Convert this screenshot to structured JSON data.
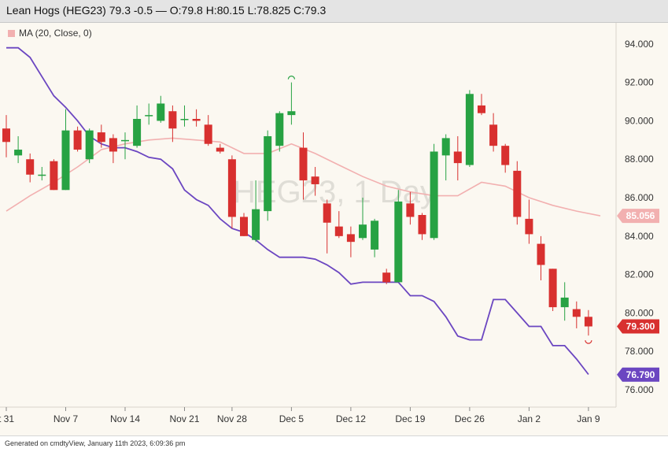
{
  "header": {
    "title": "Lean Hogs (HEG23) 79.3 -0.5 — O:79.8 H:80.15 L:78.825 C:79.3"
  },
  "legend": {
    "label": "MA (20, Close, 0)"
  },
  "watermark": "HEG23, 1 Day",
  "footer": {
    "note": "Generated on cmdtyView, January 11th 2023, 6:09:36 pm"
  },
  "colors": {
    "up": "#27a243",
    "down": "#d8302f",
    "ma": "#f2b0b0",
    "purple_line": "#6b46c1",
    "background": "#fbf8f1"
  },
  "chart_data": {
    "type": "candlestick",
    "symbol": "HEG23",
    "ylim": [
      75.1,
      95.1
    ],
    "y_ticks": [
      "94.000",
      "92.000",
      "90.000",
      "88.000",
      "86.000",
      "84.000",
      "82.000",
      "80.000",
      "78.000",
      "76.000"
    ],
    "x_tick_labels": [
      {
        "label": "t 31",
        "index": 0
      },
      {
        "label": "Nov 7",
        "index": 5
      },
      {
        "label": "Nov 14",
        "index": 10
      },
      {
        "label": "Nov 21",
        "index": 15
      },
      {
        "label": "Nov 28",
        "index": 19
      },
      {
        "label": "Dec 5",
        "index": 24
      },
      {
        "label": "Dec 12",
        "index": 29
      },
      {
        "label": "Dec 19",
        "index": 34
      },
      {
        "label": "Dec 26",
        "index": 39
      },
      {
        "label": "Jan 2",
        "index": 44
      },
      {
        "label": "Jan 9",
        "index": 49
      }
    ],
    "candles": [
      {
        "o": 89.6,
        "h": 90.3,
        "l": 88.1,
        "c": 88.9
      },
      {
        "o": 88.2,
        "h": 89.2,
        "l": 87.8,
        "c": 88.5
      },
      {
        "o": 88.0,
        "h": 88.3,
        "l": 86.8,
        "c": 87.2
      },
      {
        "o": 87.2,
        "h": 87.6,
        "l": 86.9,
        "c": 87.2
      },
      {
        "o": 87.9,
        "h": 88.0,
        "l": 86.4,
        "c": 86.4
      },
      {
        "o": 86.4,
        "h": 90.6,
        "l": 86.4,
        "c": 89.5
      },
      {
        "o": 89.5,
        "h": 89.7,
        "l": 88.4,
        "c": 88.5
      },
      {
        "o": 88.0,
        "h": 89.6,
        "l": 87.8,
        "c": 89.5
      },
      {
        "o": 89.4,
        "h": 89.8,
        "l": 88.6,
        "c": 88.9
      },
      {
        "o": 89.1,
        "h": 89.3,
        "l": 87.8,
        "c": 88.4
      },
      {
        "o": 89.0,
        "h": 89.4,
        "l": 88.0,
        "c": 89.0
      },
      {
        "o": 88.7,
        "h": 90.8,
        "l": 88.6,
        "c": 90.1
      },
      {
        "o": 90.3,
        "h": 90.9,
        "l": 89.8,
        "c": 90.3
      },
      {
        "o": 90.0,
        "h": 91.3,
        "l": 89.9,
        "c": 90.9
      },
      {
        "o": 90.5,
        "h": 90.8,
        "l": 88.9,
        "c": 89.6
      },
      {
        "o": 90.1,
        "h": 90.8,
        "l": 89.7,
        "c": 90.1
      },
      {
        "o": 90.1,
        "h": 90.6,
        "l": 89.7,
        "c": 90.0
      },
      {
        "o": 89.8,
        "h": 90.3,
        "l": 88.7,
        "c": 88.8
      },
      {
        "o": 88.6,
        "h": 88.8,
        "l": 88.3,
        "c": 88.4
      },
      {
        "o": 88.0,
        "h": 88.2,
        "l": 84.4,
        "c": 85.0
      },
      {
        "o": 85.0,
        "h": 85.2,
        "l": 84.0,
        "c": 84.0
      },
      {
        "o": 83.8,
        "h": 86.9,
        "l": 83.7,
        "c": 85.4
      },
      {
        "o": 85.3,
        "h": 89.5,
        "l": 84.8,
        "c": 89.2
      },
      {
        "o": 88.7,
        "h": 90.5,
        "l": 88.4,
        "c": 90.4
      },
      {
        "o": 90.3,
        "h": 92.0,
        "l": 89.8,
        "c": 90.5
      },
      {
        "o": 88.6,
        "h": 89.4,
        "l": 85.9,
        "c": 86.9
      },
      {
        "o": 87.1,
        "h": 87.6,
        "l": 86.1,
        "c": 86.7
      },
      {
        "o": 85.7,
        "h": 85.9,
        "l": 83.1,
        "c": 84.7
      },
      {
        "o": 84.5,
        "h": 85.3,
        "l": 83.9,
        "c": 84.0
      },
      {
        "o": 84.1,
        "h": 84.5,
        "l": 82.9,
        "c": 83.7
      },
      {
        "o": 83.9,
        "h": 86.0,
        "l": 83.8,
        "c": 84.6
      },
      {
        "o": 83.3,
        "h": 84.9,
        "l": 82.9,
        "c": 84.8
      },
      {
        "o": 82.1,
        "h": 82.3,
        "l": 81.5,
        "c": 81.6
      },
      {
        "o": 81.6,
        "h": 86.4,
        "l": 81.6,
        "c": 85.8
      },
      {
        "o": 85.7,
        "h": 86.3,
        "l": 84.6,
        "c": 85.0
      },
      {
        "o": 85.1,
        "h": 85.2,
        "l": 83.8,
        "c": 84.1
      },
      {
        "o": 83.9,
        "h": 88.8,
        "l": 83.8,
        "c": 88.4
      },
      {
        "o": 88.2,
        "h": 89.3,
        "l": 86.9,
        "c": 89.1
      },
      {
        "o": 88.4,
        "h": 89.2,
        "l": 86.9,
        "c": 87.8
      },
      {
        "o": 87.7,
        "h": 91.6,
        "l": 87.6,
        "c": 91.4
      },
      {
        "o": 90.8,
        "h": 91.4,
        "l": 90.3,
        "c": 90.4
      },
      {
        "o": 89.8,
        "h": 90.4,
        "l": 88.4,
        "c": 88.7
      },
      {
        "o": 88.7,
        "h": 88.8,
        "l": 87.3,
        "c": 87.7
      },
      {
        "o": 87.4,
        "h": 87.9,
        "l": 84.6,
        "c": 85.0
      },
      {
        "o": 84.9,
        "h": 85.9,
        "l": 83.6,
        "c": 84.1
      },
      {
        "o": 83.6,
        "h": 84.0,
        "l": 81.7,
        "c": 82.5
      },
      {
        "o": 82.3,
        "h": 82.3,
        "l": 80.1,
        "c": 80.3
      },
      {
        "o": 80.3,
        "h": 81.6,
        "l": 79.6,
        "c": 80.8
      },
      {
        "o": 80.2,
        "h": 80.6,
        "l": 79.2,
        "c": 79.8
      },
      {
        "o": 79.8,
        "h": 80.15,
        "l": 78.825,
        "c": 79.3
      }
    ],
    "ma_20": [
      {
        "i": 0,
        "v": 85.3
      },
      {
        "i": 2,
        "v": 86.1
      },
      {
        "i": 4,
        "v": 86.8
      },
      {
        "i": 6,
        "v": 87.6
      },
      {
        "i": 8,
        "v": 88.5
      },
      {
        "i": 10,
        "v": 88.8
      },
      {
        "i": 12,
        "v": 89.0
      },
      {
        "i": 14,
        "v": 89.1
      },
      {
        "i": 16,
        "v": 89.0
      },
      {
        "i": 18,
        "v": 88.9
      },
      {
        "i": 20,
        "v": 88.3
      },
      {
        "i": 22,
        "v": 88.3
      },
      {
        "i": 24,
        "v": 88.8
      },
      {
        "i": 26,
        "v": 88.3
      },
      {
        "i": 28,
        "v": 87.7
      },
      {
        "i": 30,
        "v": 87.1
      },
      {
        "i": 32,
        "v": 86.6
      },
      {
        "i": 34,
        "v": 86.3
      },
      {
        "i": 36,
        "v": 86.1
      },
      {
        "i": 38,
        "v": 86.1
      },
      {
        "i": 40,
        "v": 86.8
      },
      {
        "i": 42,
        "v": 86.6
      },
      {
        "i": 44,
        "v": 86.0
      },
      {
        "i": 46,
        "v": 85.6
      },
      {
        "i": 48,
        "v": 85.3
      },
      {
        "i": 50,
        "v": 85.056
      }
    ],
    "purple_line": [
      {
        "i": 0,
        "v": 93.8
      },
      {
        "i": 1,
        "v": 93.8
      },
      {
        "i": 2,
        "v": 93.3
      },
      {
        "i": 3,
        "v": 92.3
      },
      {
        "i": 4,
        "v": 91.3
      },
      {
        "i": 5,
        "v": 90.7
      },
      {
        "i": 6,
        "v": 90.0
      },
      {
        "i": 7,
        "v": 89.2
      },
      {
        "i": 8,
        "v": 88.8
      },
      {
        "i": 9,
        "v": 88.6
      },
      {
        "i": 10,
        "v": 88.6
      },
      {
        "i": 11,
        "v": 88.4
      },
      {
        "i": 12,
        "v": 88.1
      },
      {
        "i": 13,
        "v": 88.0
      },
      {
        "i": 14,
        "v": 87.5
      },
      {
        "i": 15,
        "v": 86.4
      },
      {
        "i": 16,
        "v": 85.9
      },
      {
        "i": 17,
        "v": 85.6
      },
      {
        "i": 18,
        "v": 84.9
      },
      {
        "i": 19,
        "v": 84.4
      },
      {
        "i": 20,
        "v": 84.2
      },
      {
        "i": 21,
        "v": 83.8
      },
      {
        "i": 22,
        "v": 83.3
      },
      {
        "i": 23,
        "v": 82.9
      },
      {
        "i": 24,
        "v": 82.9
      },
      {
        "i": 25,
        "v": 82.9
      },
      {
        "i": 26,
        "v": 82.8
      },
      {
        "i": 27,
        "v": 82.5
      },
      {
        "i": 28,
        "v": 82.1
      },
      {
        "i": 29,
        "v": 81.5
      },
      {
        "i": 30,
        "v": 81.6
      },
      {
        "i": 31,
        "v": 81.6
      },
      {
        "i": 32,
        "v": 81.6
      },
      {
        "i": 33,
        "v": 81.6
      },
      {
        "i": 34,
        "v": 80.9
      },
      {
        "i": 35,
        "v": 80.9
      },
      {
        "i": 36,
        "v": 80.6
      },
      {
        "i": 37,
        "v": 79.8
      },
      {
        "i": 38,
        "v": 78.8
      },
      {
        "i": 39,
        "v": 78.6
      },
      {
        "i": 40,
        "v": 78.6
      },
      {
        "i": 41,
        "v": 80.7
      },
      {
        "i": 42,
        "v": 80.7
      },
      {
        "i": 43,
        "v": 80.0
      },
      {
        "i": 44,
        "v": 79.3
      },
      {
        "i": 45,
        "v": 79.3
      },
      {
        "i": 46,
        "v": 78.3
      },
      {
        "i": 47,
        "v": 78.3
      },
      {
        "i": 48,
        "v": 77.6
      },
      {
        "i": 49,
        "v": 76.8
      }
    ],
    "price_labels": [
      {
        "value": 85.056,
        "text": "85.056",
        "color": "#f2b0b0",
        "text_color": "#ffffff"
      },
      {
        "value": 79.3,
        "text": "79.300",
        "color": "#d8302f",
        "text_color": "#ffffff"
      },
      {
        "value": 76.79,
        "text": "76.790",
        "color": "#6b46c1",
        "text_color": "#ffffff"
      }
    ],
    "pivot_markers": [
      {
        "index": 24,
        "value": 92.0,
        "type": "high"
      },
      {
        "index": 49,
        "value": 78.825,
        "type": "low"
      }
    ],
    "grid": false
  }
}
